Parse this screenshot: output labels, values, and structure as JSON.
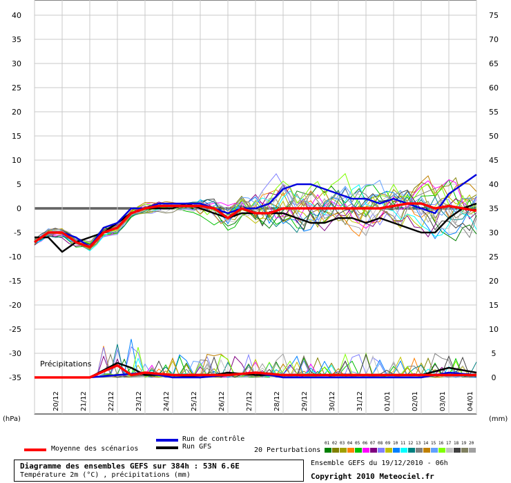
{
  "chart_data": {
    "type": "line",
    "title": "Diagramme des ensembles GEFS sur 384h : 53N 6.6E",
    "subtitle": "Température 2m (°C) , précipitations (mm)",
    "left_axis": {
      "unit": "(hPa)",
      "ticks": [
        40,
        35,
        30,
        25,
        20,
        15,
        10,
        5,
        0,
        -5,
        -10,
        -15,
        -20,
        -25,
        -30,
        -35
      ]
    },
    "right_axis": {
      "unit": "(mm)",
      "ticks": [
        75,
        70,
        65,
        60,
        55,
        50,
        45,
        40,
        35,
        30,
        25,
        20,
        15,
        10,
        5,
        0
      ]
    },
    "x_ticks": [
      "20/12",
      "21/12",
      "22/12",
      "23/12",
      "24/12",
      "25/12",
      "26/12",
      "27/12",
      "28/12",
      "29/12",
      "30/12",
      "31/12",
      "01/01",
      "02/01",
      "03/01",
      "04/01"
    ],
    "precip_label": "Précipitations",
    "grid": true,
    "temperature_series": [
      {
        "name": "Moyenne des scénarios",
        "color": "#ff0000",
        "days": [
          0,
          0.5,
          1,
          1.5,
          2,
          2.5,
          3,
          3.5,
          4,
          4.5,
          5,
          5.5,
          6,
          6.5,
          7,
          7.5,
          8,
          8.5,
          9,
          9.5,
          10,
          10.5,
          11,
          11.5,
          12,
          12.5,
          13,
          13.5,
          14,
          14.5,
          15,
          15.5,
          16
        ],
        "values": [
          -7,
          -5,
          -5,
          -7,
          -8,
          -5,
          -4,
          -1,
          0,
          0.5,
          0.5,
          0.5,
          0.5,
          0,
          -2,
          0,
          -1,
          -1,
          0,
          0,
          0,
          0,
          0,
          0,
          0,
          0,
          0.5,
          1,
          1,
          0,
          0.5,
          0,
          -0.5
        ]
      },
      {
        "name": "Run de contrôle",
        "color": "#0000dd",
        "days": [
          0,
          0.5,
          1,
          1.5,
          2,
          2.5,
          3,
          3.5,
          4,
          4.5,
          5,
          5.5,
          6,
          6.5,
          7,
          7.5,
          8,
          8.5,
          9,
          9.5,
          10,
          10.5,
          11,
          11.5,
          12,
          12.5,
          13,
          13.5,
          14,
          14.5,
          15,
          15.5,
          16
        ],
        "values": [
          -7,
          -5,
          -5,
          -6,
          -8,
          -4,
          -3,
          0,
          0,
          1,
          1,
          1,
          1,
          0,
          -1,
          0,
          0,
          1,
          4,
          5,
          5,
          4,
          3,
          2,
          2,
          1,
          2,
          1,
          0,
          -1,
          3,
          5,
          7
        ]
      },
      {
        "name": "Run GFS",
        "color": "#000000",
        "days": [
          0,
          0.5,
          1,
          1.5,
          2,
          2.5,
          3,
          3.5,
          4,
          4.5,
          5,
          5.5,
          6,
          6.5,
          7,
          7.5,
          8,
          8.5,
          9,
          9.5,
          10,
          10.5,
          11,
          11.5,
          12,
          12.5,
          13,
          13.5,
          14,
          14.5,
          15,
          15.5,
          16
        ],
        "values": [
          -6,
          -6,
          -9,
          -7,
          -6,
          -5,
          -3,
          -1,
          0,
          0,
          0,
          1,
          0,
          -1,
          -2,
          -1,
          -1,
          -1,
          -1,
          -2,
          -3,
          -3,
          -2,
          -2,
          -3,
          -2,
          -3,
          -4,
          -5,
          -5,
          -2,
          0,
          1
        ]
      }
    ],
    "precip_series": [
      {
        "name": "Moyenne des scénarios",
        "color": "#ff0000",
        "days": [
          0,
          1,
          2,
          3,
          3.5,
          4,
          5,
          6,
          7,
          8,
          9,
          10,
          11,
          12,
          13,
          14,
          15,
          16
        ],
        "values": [
          0,
          0,
          0,
          2.5,
          0.5,
          1,
          0.5,
          0.5,
          0.5,
          1,
          0.5,
          0.5,
          0.5,
          0.5,
          0.5,
          0.5,
          0.5,
          0.5
        ]
      },
      {
        "name": "Run de contrôle",
        "color": "#0000dd",
        "days": [
          0,
          1,
          2,
          3,
          4,
          5,
          6,
          7,
          8,
          9,
          10,
          11,
          12,
          13,
          14,
          15,
          16
        ],
        "values": [
          0,
          0,
          0,
          0.5,
          1,
          0,
          0,
          0.5,
          1,
          0,
          0,
          0,
          0,
          0,
          0,
          1,
          0.5
        ]
      },
      {
        "name": "Run GFS",
        "color": "#000000",
        "days": [
          0,
          1,
          2,
          3,
          3.5,
          4,
          5,
          6,
          7,
          8,
          9,
          10,
          11,
          12,
          13,
          14,
          15,
          16
        ],
        "values": [
          0,
          0,
          0,
          3,
          2,
          0.5,
          0.5,
          0,
          1,
          0.5,
          0.5,
          0.5,
          0.5,
          0.5,
          0.5,
          0.5,
          2,
          1
        ]
      }
    ],
    "perturbation_colors": [
      "#008000",
      "#808000",
      "#a0a000",
      "#ff8000",
      "#00c000",
      "#ff00ff",
      "#800080",
      "#8080ff",
      "#c0c000",
      "#0080ff",
      "#00ffff",
      "#008080",
      "#808080",
      "#c08000",
      "#60a0ff",
      "#80ff00",
      "#c0c0c0",
      "#404040",
      "#808060",
      "#a0a0a0"
    ]
  },
  "legend": {
    "moyenne": "Moyenne des scénarios",
    "controle": "Run de contrôle",
    "gfs": "Run GFS",
    "perturbations": "20 Perturbations",
    "perturbation_numbers": [
      "01",
      "02",
      "03",
      "04",
      "05",
      "06",
      "07",
      "08",
      "09",
      "10",
      "11",
      "12",
      "13",
      "14",
      "15",
      "16",
      "17",
      "18",
      "19",
      "20"
    ]
  },
  "footer": {
    "title": "Diagramme des ensembles GEFS sur 384h : 53N 6.6E",
    "subtitle": "Température 2m (°C) , précipitations (mm)",
    "ensemble": "Ensemble GEFS du 19/12/2010 - 06h",
    "copyright": "Copyright 2010 Meteociel.fr"
  },
  "colors": {
    "red": "#ff0000",
    "blue": "#0000dd",
    "black": "#000000"
  }
}
